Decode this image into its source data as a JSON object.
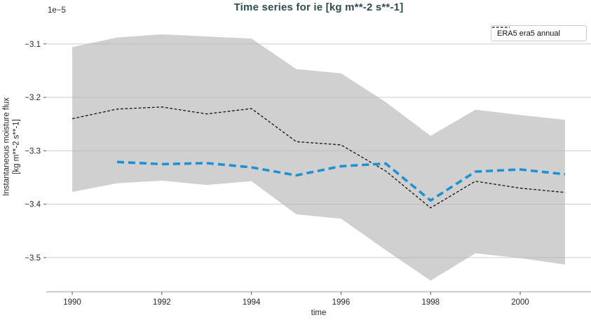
{
  "title": "Time series for ie [kg m**-2 s**-1]",
  "legend": {
    "entries": [
      {
        "label": "ERA5 era5 annual"
      }
    ],
    "position": "upper right"
  },
  "axes": {
    "x_label": "time",
    "y_label_line1": "Instantaneous moisture flux",
    "y_label_line2": "[kg m**-2 s**-1]",
    "offset_text": "1e−5",
    "x_tick_labels": [
      "1990",
      "1992",
      "1994",
      "1996",
      "1998",
      "2000"
    ],
    "y_tick_labels": [
      "−3.1",
      "−3.2",
      "−3.3",
      "−3.4",
      "−3.5"
    ]
  },
  "colors": {
    "title": "#2e4d4d",
    "black_line": "#111111",
    "blue_line": "#1e91d2",
    "band_fill": "#b0b0b0",
    "gridline": "#cdcdcd",
    "spine": "#c8c8c8",
    "tick": "#555555",
    "tick_label": "#262626"
  },
  "chart_data": {
    "type": "line",
    "title": "Time series for ie [kg m**-2 s**-1]",
    "xlabel": "time",
    "ylabel": "Instantaneous moisture flux [kg m**-2 s**-1]",
    "value_scale_factor": "1e-5",
    "grid": "horizontal-only",
    "legend_position": "upper right",
    "xlim": [
      1989.42,
      2001.58
    ],
    "ylim_1e5": [
      -3.564,
      -3.061
    ],
    "x_ticks": [
      1990,
      1992,
      1994,
      1996,
      1998,
      2000
    ],
    "y_ticks_1e5": [
      -3.1,
      -3.2,
      -3.3,
      -3.4,
      -3.5
    ],
    "series": [
      {
        "id": "era5-annual",
        "label": "ERA5 era5 annual",
        "color": "#111111",
        "style": "dashed-thin",
        "x": [
          1990,
          1991,
          1992,
          1993,
          1994,
          1995,
          1996,
          1997,
          1998,
          1999,
          2000,
          2001
        ],
        "values_1e5": [
          -3.24,
          -3.222,
          -3.218,
          -3.231,
          -3.221,
          -3.283,
          -3.289,
          -3.338,
          -3.407,
          -3.357,
          -3.37,
          -3.378
        ]
      },
      {
        "id": "blue-annual",
        "label": "",
        "color": "#1e91d2",
        "style": "dashed-thick",
        "x": [
          1991,
          1992,
          1993,
          1994,
          1995,
          1996,
          1997,
          1998,
          1999,
          2000,
          2001
        ],
        "values_1e5": [
          -3.321,
          -3.325,
          -3.323,
          -3.331,
          -3.346,
          -3.329,
          -3.324,
          -3.393,
          -3.339,
          -3.335,
          -3.344
        ]
      }
    ],
    "band": {
      "id": "uncertainty-band",
      "fill": "#b0b0b0",
      "opacity": 0.6,
      "x": [
        1990,
        1991,
        1992,
        1993,
        1994,
        1995,
        1996,
        1997,
        1998,
        1999,
        2000,
        2001
      ],
      "upper_1e5": [
        -3.106,
        -3.088,
        -3.082,
        -3.086,
        -3.09,
        -3.147,
        -3.155,
        -3.209,
        -3.272,
        -3.223,
        -3.233,
        -3.242
      ],
      "lower_1e5": [
        -3.377,
        -3.361,
        -3.356,
        -3.364,
        -3.357,
        -3.419,
        -3.427,
        -3.486,
        -3.543,
        -3.492,
        -3.501,
        -3.513
      ]
    }
  }
}
